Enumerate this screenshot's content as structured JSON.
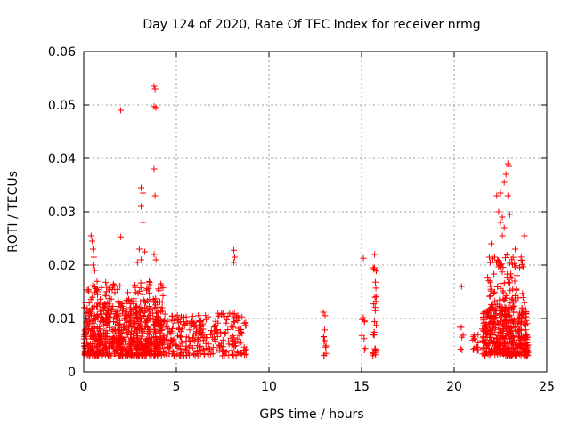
{
  "chart_data": {
    "type": "scatter",
    "title": "Day 124 of 2020, Rate Of TEC Index for receiver nrmg",
    "xlabel": "GPS time / hours",
    "ylabel": "ROTI / TECUs",
    "xlim": [
      0,
      25
    ],
    "ylim": [
      0,
      0.06
    ],
    "x_ticks": [
      0,
      5,
      10,
      15,
      20,
      25
    ],
    "x_tick_labels": [
      "0",
      "5",
      "10",
      "15",
      "20",
      "25"
    ],
    "y_ticks": [
      0,
      0.01,
      0.02,
      0.03,
      0.04,
      0.05,
      0.06
    ],
    "y_tick_labels": [
      "0",
      "0.01",
      "0.02",
      "0.03",
      "0.04",
      "0.05",
      "0.06"
    ],
    "grid": true,
    "marker": "+",
    "color": "#ff0000",
    "clusters": [
      {
        "x": [
          0.0,
          4.3
        ],
        "y": [
          0.003,
          0.012
        ],
        "count": 700
      },
      {
        "x": [
          0.0,
          4.3
        ],
        "y": [
          0.012,
          0.017
        ],
        "count": 120
      },
      {
        "x": [
          4.3,
          6.0
        ],
        "y": [
          0.003,
          0.011
        ],
        "count": 120
      },
      {
        "x": [
          6.0,
          8.8
        ],
        "y": [
          0.003,
          0.011
        ],
        "count": 170
      },
      {
        "x": [
          12.9,
          13.1
        ],
        "y": [
          0.003,
          0.012
        ],
        "count": 12
      },
      {
        "x": [
          15.0,
          15.2
        ],
        "y": [
          0.004,
          0.012
        ],
        "count": 8
      },
      {
        "x": [
          15.6,
          15.8
        ],
        "y": [
          0.003,
          0.02
        ],
        "count": 25
      },
      {
        "x": [
          20.3,
          20.5
        ],
        "y": [
          0.004,
          0.01
        ],
        "count": 6
      },
      {
        "x": [
          21.0,
          21.3
        ],
        "y": [
          0.004,
          0.007
        ],
        "count": 15
      },
      {
        "x": [
          21.5,
          24.0
        ],
        "y": [
          0.003,
          0.012
        ],
        "count": 420
      },
      {
        "x": [
          21.8,
          23.8
        ],
        "y": [
          0.012,
          0.022
        ],
        "count": 90
      }
    ],
    "notable_points": [
      {
        "x": 0.4,
        "y": 0.0255
      },
      {
        "x": 0.45,
        "y": 0.0245
      },
      {
        "x": 0.5,
        "y": 0.023
      },
      {
        "x": 0.55,
        "y": 0.0215
      },
      {
        "x": 0.5,
        "y": 0.02
      },
      {
        "x": 0.6,
        "y": 0.019
      },
      {
        "x": 2.0,
        "y": 0.049
      },
      {
        "x": 2.0,
        "y": 0.0253
      },
      {
        "x": 3.1,
        "y": 0.0345
      },
      {
        "x": 3.2,
        "y": 0.0335
      },
      {
        "x": 3.1,
        "y": 0.031
      },
      {
        "x": 3.2,
        "y": 0.028
      },
      {
        "x": 3.0,
        "y": 0.023
      },
      {
        "x": 3.3,
        "y": 0.0225
      },
      {
        "x": 3.1,
        "y": 0.021
      },
      {
        "x": 2.9,
        "y": 0.0205
      },
      {
        "x": 3.8,
        "y": 0.0535
      },
      {
        "x": 3.85,
        "y": 0.053
      },
      {
        "x": 3.8,
        "y": 0.0497
      },
      {
        "x": 3.9,
        "y": 0.0495
      },
      {
        "x": 3.8,
        "y": 0.038
      },
      {
        "x": 3.85,
        "y": 0.033
      },
      {
        "x": 3.8,
        "y": 0.022
      },
      {
        "x": 3.9,
        "y": 0.021
      },
      {
        "x": 8.1,
        "y": 0.0228
      },
      {
        "x": 8.15,
        "y": 0.0215
      },
      {
        "x": 8.1,
        "y": 0.0205
      },
      {
        "x": 15.1,
        "y": 0.0213
      },
      {
        "x": 15.7,
        "y": 0.022
      },
      {
        "x": 15.7,
        "y": 0.0195
      },
      {
        "x": 20.4,
        "y": 0.016
      },
      {
        "x": 22.9,
        "y": 0.039
      },
      {
        "x": 22.95,
        "y": 0.0385
      },
      {
        "x": 22.8,
        "y": 0.037
      },
      {
        "x": 22.7,
        "y": 0.0355
      },
      {
        "x": 22.5,
        "y": 0.0335
      },
      {
        "x": 22.9,
        "y": 0.033
      },
      {
        "x": 22.3,
        "y": 0.033
      },
      {
        "x": 22.4,
        "y": 0.03
      },
      {
        "x": 22.6,
        "y": 0.029
      },
      {
        "x": 23.0,
        "y": 0.0295
      },
      {
        "x": 22.5,
        "y": 0.028
      },
      {
        "x": 22.7,
        "y": 0.027
      },
      {
        "x": 22.6,
        "y": 0.0255
      },
      {
        "x": 23.8,
        "y": 0.0255
      },
      {
        "x": 22.0,
        "y": 0.024
      },
      {
        "x": 23.3,
        "y": 0.023
      },
      {
        "x": 21.9,
        "y": 0.0215
      }
    ]
  }
}
